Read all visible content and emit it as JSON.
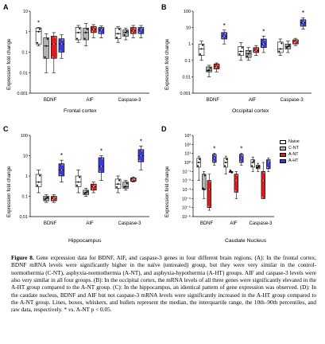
{
  "figure": {
    "caption_label": "Figure 8.",
    "caption_text": "Gene expression data for BDNF, AIF, and caspase-3 genes in four different brain regions. (A): In the frontal cortex, BDNF mRNA levels were significantly higher in the naïve (untreated) group, but they were very similar in the control-normothermia (C-NT), asphyxia-normothermia (A-NT), and asphyxia-hypothermia (A-HT) groups. AIF and caspase-3 levels were also very similar in all four groups. (B): In the occipital cortex, the mRNA levels of all three genes were significantly elevated in the A-HT group compared to the A-NT group. (C): In the hippocampus, an identical pattern of gene expression was observed. (D): In the caudate nucleus, BDNF and AIF but not caspase-3 mRNA levels were significantly increased in the A-HT group compared to the A-NT group. Lines, boxes, whiskers, and bullets represent the median, the interquartile range, the 10th–90th percentiles, and raw data, respectively. * vs. A-NT p < 0.05."
  },
  "legend": {
    "items": [
      {
        "label": "Naive",
        "color": "#ffffff"
      },
      {
        "label": "C-NT",
        "color": "#b3b3b3"
      },
      {
        "label": "A-NT",
        "color": "#e31a1c"
      },
      {
        "label": "A-HT",
        "color": "#3b3bd6"
      }
    ]
  },
  "chart_data": [
    {
      "panel": "A",
      "type": "box",
      "title": "Frontal cortex",
      "ylabel": "Expression fold change",
      "yscale": "log",
      "ylim": [
        0.001,
        10
      ],
      "yticks": [
        "0.001",
        "0.01",
        "0.1",
        "1",
        "10"
      ],
      "categories": [
        "BDNF",
        "AIF",
        "Caspase-3"
      ],
      "series": [
        {
          "name": "Naive",
          "data": [
            [
              0.2,
              0.25,
              1.0,
              1.5,
              1.6
            ],
            [
              0.3,
              0.4,
              0.9,
              1.6,
              2.0
            ],
            [
              0.3,
              0.45,
              0.8,
              1.5,
              1.8
            ]
          ]
        },
        {
          "name": "C-NT",
          "data": [
            [
              0.01,
              0.05,
              0.2,
              0.5,
              0.8
            ],
            [
              0.2,
              0.4,
              0.9,
              1.5,
              2.5
            ],
            [
              0.4,
              0.6,
              0.9,
              1.2,
              1.5
            ]
          ]
        },
        {
          "name": "A-NT",
          "data": [
            [
              0.01,
              0.05,
              0.25,
              0.6,
              0.9
            ],
            [
              0.5,
              0.9,
              1.3,
              1.8,
              2.2
            ],
            [
              0.5,
              0.8,
              1.1,
              1.6,
              2.0
            ]
          ]
        },
        {
          "name": "A-HT",
          "data": [
            [
              0.05,
              0.1,
              0.25,
              0.45,
              0.7
            ],
            [
              0.5,
              0.8,
              1.2,
              1.6,
              1.9
            ],
            [
              0.5,
              0.8,
              1.2,
              1.6,
              2.0
            ]
          ]
        }
      ],
      "annotations": [
        {
          "category": "BDNF",
          "series": "Naive",
          "text": "*"
        }
      ]
    },
    {
      "panel": "B",
      "type": "box",
      "title": "Occipital cortex",
      "ylabel": "Expression fold change",
      "yscale": "log",
      "ylim": [
        0.001,
        100
      ],
      "yticks": [
        "0.001",
        "0.01",
        "0.1",
        "1",
        "10",
        "100"
      ],
      "categories": [
        "BDNF",
        "AIF",
        "Caspase-3"
      ],
      "series": [
        {
          "name": "Naive",
          "data": [
            [
              0.1,
              0.2,
              0.5,
              1.0,
              1.5
            ],
            [
              0.1,
              0.2,
              0.35,
              0.7,
              1.2
            ],
            [
              0.2,
              0.3,
              0.5,
              1.3,
              2.0
            ]
          ]
        },
        {
          "name": "C-NT",
          "data": [
            [
              0.01,
              0.02,
              0.025,
              0.04,
              0.05
            ],
            [
              0.1,
              0.15,
              0.25,
              0.4,
              0.6
            ],
            [
              0.3,
              0.5,
              0.7,
              1.0,
              1.5
            ]
          ]
        },
        {
          "name": "A-NT",
          "data": [
            [
              0.02,
              0.03,
              0.04,
              0.06,
              0.07
            ],
            [
              0.2,
              0.3,
              0.4,
              0.6,
              0.8
            ],
            [
              0.8,
              1.0,
              1.3,
              1.8,
              2.2
            ]
          ]
        },
        {
          "name": "A-HT",
          "data": [
            [
              1.0,
              2.0,
              3.0,
              5.0,
              7.0
            ],
            [
              0.3,
              0.6,
              1.0,
              2.0,
              3.0
            ],
            [
              8.0,
              12.0,
              20.0,
              30.0,
              40.0
            ]
          ]
        }
      ],
      "annotations": [
        {
          "category": "BDNF",
          "series": "A-HT",
          "text": "*"
        },
        {
          "category": "AIF",
          "series": "A-HT",
          "text": "*"
        },
        {
          "category": "Caspase-3",
          "series": "A-HT",
          "text": "*"
        }
      ]
    },
    {
      "panel": "C",
      "type": "box",
      "title": "Hippocampus",
      "ylabel": "Expression fold change",
      "yscale": "log",
      "ylim": [
        0.01,
        100
      ],
      "yticks": [
        "0.01",
        "0.1",
        "1",
        "10",
        "100"
      ],
      "categories": [
        "BDNF",
        "AIF",
        "Caspase-3"
      ],
      "series": [
        {
          "name": "Naive",
          "data": [
            [
              0.15,
              0.3,
              0.5,
              1.2,
              2.0
            ],
            [
              0.15,
              0.3,
              0.5,
              1.0,
              2.0
            ],
            [
              0.15,
              0.25,
              0.4,
              0.7,
              1.0
            ]
          ]
        },
        {
          "name": "C-NT",
          "data": [
            [
              0.05,
              0.06,
              0.08,
              0.1,
              0.12
            ],
            [
              0.1,
              0.12,
              0.15,
              0.2,
              0.25
            ],
            [
              0.2,
              0.25,
              0.3,
              0.5,
              0.6
            ]
          ]
        },
        {
          "name": "A-NT",
          "data": [
            [
              0.05,
              0.06,
              0.08,
              0.1,
              0.12
            ],
            [
              0.15,
              0.2,
              0.3,
              0.4,
              0.5
            ],
            [
              0.5,
              0.55,
              0.7,
              0.8,
              0.9
            ]
          ]
        },
        {
          "name": "A-HT",
          "data": [
            [
              0.5,
              1.0,
              2.0,
              4.0,
              6.0
            ],
            [
              0.6,
              1.5,
              3.0,
              8.0,
              10.0
            ],
            [
              2.0,
              5.0,
              10.0,
              20.0,
              30.0
            ]
          ]
        }
      ],
      "annotations": [
        {
          "category": "BDNF",
          "series": "A-HT",
          "text": "*"
        },
        {
          "category": "AIF",
          "series": "A-HT",
          "text": "*"
        },
        {
          "category": "Caspase-3",
          "series": "A-HT",
          "text": "*"
        }
      ]
    },
    {
      "panel": "D",
      "type": "box",
      "title": "Caudate Nucleus",
      "ylabel": "Expression fold change",
      "yscale": "log",
      "ylim": [
        1e-06,
        1000
      ],
      "yticks": [
        "10⁻⁶",
        "10⁻⁵",
        "10⁻⁴",
        "10⁻³",
        "10⁻²",
        "10⁻¹",
        "10⁰",
        "10¹",
        "10²",
        "10³"
      ],
      "categories": [
        "BDNF",
        "AIF",
        "Caspase-3"
      ],
      "series": [
        {
          "name": "Naive",
          "data": [
            [
              0.01,
              0.3,
              1.0,
              3.0,
              5.0
            ],
            [
              0.05,
              0.3,
              1.0,
              3.0,
              5.0
            ],
            [
              0.1,
              0.3,
              1.0,
              2.0,
              4.0
            ]
          ]
        },
        {
          "name": "C-NT",
          "data": [
            [
              0.0001,
              0.001,
              0.001,
              0.05,
              0.1
            ],
            [
              0.1,
              0.1,
              0.1,
              0.1,
              0.1
            ],
            [
              0.1,
              0.2,
              0.3,
              0.5,
              0.8
            ]
          ]
        },
        {
          "name": "A-NT",
          "data": [
            [
              5e-06,
              1e-05,
              0.001,
              0.01,
              0.05
            ],
            [
              0.0001,
              0.0005,
              0.01,
              0.05,
              0.1
            ],
            [
              0.0001,
              0.0001,
              0.01,
              0.1,
              1.0
            ]
          ]
        },
        {
          "name": "A-HT",
          "data": [
            [
              0.5,
              1.0,
              3.0,
              8.0,
              10.0
            ],
            [
              0.5,
              1.0,
              3.0,
              8.0,
              10.0
            ],
            [
              0.1,
              0.2,
              1.0,
              2.0,
              3.0
            ]
          ]
        }
      ],
      "annotations": [
        {
          "category": "BDNF",
          "series": "A-HT",
          "text": "*"
        },
        {
          "category": "AIF",
          "series": "A-HT",
          "text": "*"
        }
      ]
    }
  ]
}
